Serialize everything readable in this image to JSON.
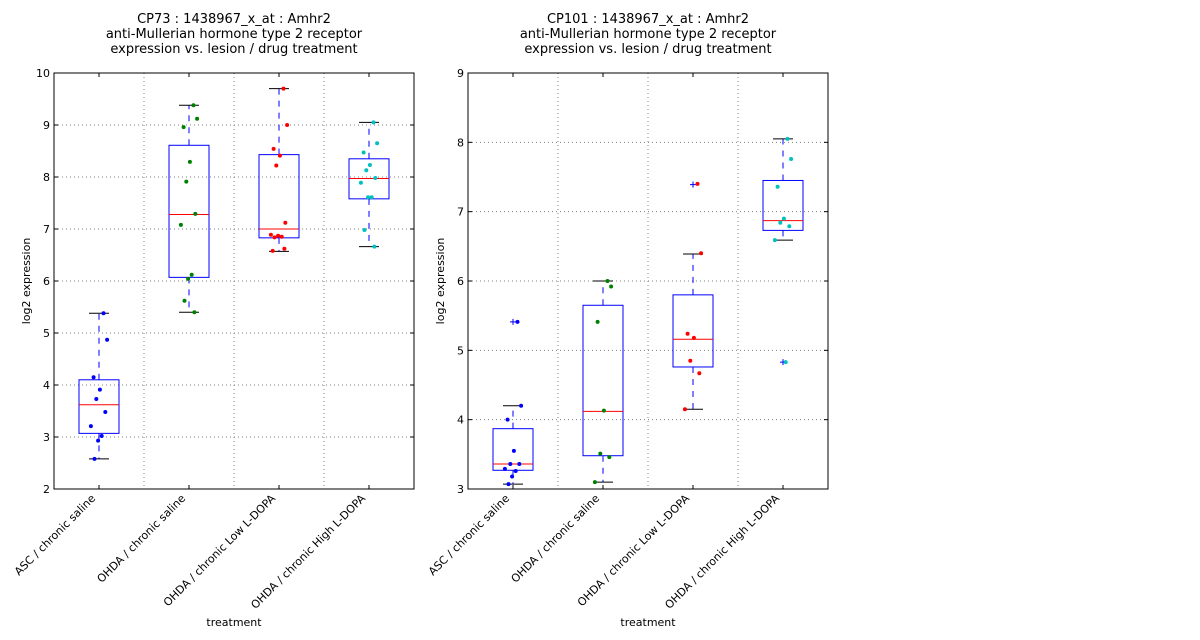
{
  "chart_data": [
    {
      "type": "box",
      "title_lines": [
        "CP73 : 1438967_x_at : Amhr2",
        "anti-Mullerian hormone type 2 receptor",
        " expression vs. lesion / drug treatment"
      ],
      "xlabel": "treatment",
      "ylabel": "log2 expression",
      "ylim": [
        2,
        10
      ],
      "yticks": [
        2,
        3,
        4,
        5,
        6,
        7,
        8,
        9,
        10
      ],
      "grid": true,
      "categories": [
        "ASC / chronic saline",
        "OHDA / chronic saline",
        "OHDA / chronic Low L-DOPA",
        "OHDA / chronic High L-DOPA"
      ],
      "boxes": [
        {
          "q1": 3.07,
          "median": 3.62,
          "q3": 4.1,
          "whisker_low": 2.58,
          "whisker_high": 5.38,
          "outliers": [],
          "color": "#0000ff",
          "points": [
            5.38,
            4.87,
            4.15,
            3.91,
            3.73,
            3.48,
            3.21,
            3.02,
            2.93,
            2.58
          ]
        },
        {
          "q1": 6.07,
          "median": 7.28,
          "q3": 8.61,
          "whisker_low": 5.4,
          "whisker_high": 9.38,
          "outliers": [],
          "color": "#008000",
          "points": [
            9.38,
            9.12,
            8.96,
            8.29,
            7.91,
            7.29,
            7.08,
            6.12,
            6.04,
            5.62,
            5.4
          ]
        },
        {
          "q1": 6.83,
          "median": 7.0,
          "q3": 8.43,
          "whisker_low": 6.57,
          "whisker_high": 9.7,
          "outliers": [],
          "color": "#ff0000",
          "points": [
            9.7,
            9.0,
            8.54,
            8.41,
            8.22,
            7.12,
            6.89,
            6.85,
            6.87,
            6.84,
            6.62,
            6.58
          ]
        },
        {
          "q1": 7.58,
          "median": 7.97,
          "q3": 8.35,
          "whisker_low": 6.66,
          "whisker_high": 9.05,
          "outliers": [],
          "color": "#00c0c0",
          "points": [
            9.05,
            8.65,
            8.47,
            8.23,
            8.13,
            7.98,
            7.89,
            7.61,
            7.61,
            6.98,
            6.66
          ]
        }
      ]
    },
    {
      "type": "box",
      "title_lines": [
        "CP101 : 1438967_x_at : Amhr2",
        "anti-Mullerian hormone type 2 receptor",
        " expression vs. lesion / drug treatment"
      ],
      "xlabel": "treatment",
      "ylabel": "log2 expression",
      "ylim": [
        3,
        9
      ],
      "yticks": [
        3,
        4,
        5,
        6,
        7,
        8,
        9
      ],
      "grid": true,
      "categories": [
        "ASC / chronic saline",
        "OHDA / chronic saline",
        "OHDA / chronic Low L-DOPA",
        "OHDA / chronic High L-DOPA"
      ],
      "boxes": [
        {
          "q1": 3.27,
          "median": 3.36,
          "q3": 3.87,
          "whisker_low": 3.07,
          "whisker_high": 4.2,
          "outliers": [
            5.41
          ],
          "color": "#0000ff",
          "points": [
            5.41,
            4.2,
            4.0,
            3.55,
            3.36,
            3.36,
            3.29,
            3.26,
            3.18,
            3.07
          ]
        },
        {
          "q1": 3.48,
          "median": 4.12,
          "q3": 5.65,
          "whisker_low": 3.1,
          "whisker_high": 6.0,
          "outliers": [],
          "color": "#008000",
          "points": [
            6.0,
            5.92,
            5.41,
            4.13,
            3.51,
            3.46,
            3.1
          ]
        },
        {
          "q1": 4.76,
          "median": 5.16,
          "q3": 5.8,
          "whisker_low": 4.15,
          "whisker_high": 6.39,
          "outliers": [
            7.39
          ],
          "color": "#ff0000",
          "points": [
            7.4,
            6.4,
            5.24,
            5.18,
            4.85,
            4.67,
            4.15
          ]
        },
        {
          "q1": 6.73,
          "median": 6.87,
          "q3": 7.45,
          "whisker_low": 6.59,
          "whisker_high": 8.05,
          "outliers": [
            4.83
          ],
          "color": "#00c0c0",
          "points": [
            8.05,
            7.76,
            7.36,
            6.9,
            6.84,
            6.79,
            6.59,
            4.83
          ]
        }
      ]
    }
  ]
}
